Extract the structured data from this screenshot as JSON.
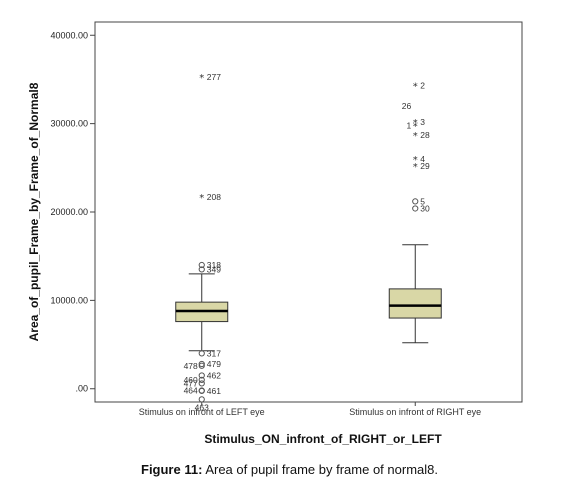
{
  "chart_data": {
    "type": "boxplot",
    "ylabel": "Area_of_pupil_Frame_by_Frame_of_Normal8",
    "xlabel": "Stimulus_ON_infront_of_RIGHT_or_LEFT",
    "ylim": [
      -1500,
      41500
    ],
    "yticks": [
      0,
      10000,
      20000,
      30000,
      40000
    ],
    "ytick_labels": [
      ".00",
      "10000.00",
      "20000.00",
      "30000.00",
      "40000.00"
    ],
    "grid": false,
    "legend": "none",
    "box_fill": "#d9d7a6",
    "categories": [
      {
        "name": "Stimulus on infront of LEFT eye",
        "whisker_low": 4300,
        "q1": 7600,
        "median": 8800,
        "q3": 9800,
        "whisker_high": 13000,
        "outliers": [
          {
            "label": "277",
            "value": 35300,
            "marker": "star",
            "label_side": "right"
          },
          {
            "label": "208",
            "value": 21700,
            "marker": "star",
            "label_side": "right"
          },
          {
            "label": "318",
            "value": 14000,
            "marker": "circle",
            "label_side": "right"
          },
          {
            "label": "349",
            "value": 13500,
            "marker": "circle",
            "label_side": "right"
          },
          {
            "label": "317",
            "value": 4000,
            "marker": "circle",
            "label_side": "right"
          },
          {
            "label": "478",
            "value": 2600,
            "marker": "circle",
            "label_side": "left"
          },
          {
            "label": "479",
            "value": 2800,
            "marker": "circle",
            "label_side": "right"
          },
          {
            "label": "462",
            "value": 1500,
            "marker": "circle",
            "label_side": "right"
          },
          {
            "label": "460",
            "value": 1000,
            "marker": "circle",
            "label_side": "left"
          },
          {
            "label": "477",
            "value": 600,
            "marker": "circle",
            "label_side": "left"
          },
          {
            "label": "464",
            "value": -200,
            "marker": "circle",
            "label_side": "left"
          },
          {
            "label": "461",
            "value": -250,
            "marker": "circle",
            "label_side": "right"
          },
          {
            "label": "463",
            "value": -1200,
            "marker": "circle",
            "label_side": "below"
          }
        ]
      },
      {
        "name": "Stimulus on infront of RIGHT eye",
        "whisker_low": 5200,
        "q1": 8000,
        "median": 9400,
        "q3": 11300,
        "whisker_high": 16300,
        "outliers": [
          {
            "label": "2",
            "value": 34300,
            "marker": "star",
            "label_side": "right"
          },
          {
            "label": "26",
            "value": 32000,
            "marker": "none",
            "label_side": "left"
          },
          {
            "label": "3",
            "value": 30200,
            "marker": "star",
            "label_side": "right"
          },
          {
            "label": "1",
            "value": 29800,
            "marker": "star",
            "label_side": "left"
          },
          {
            "label": "28",
            "value": 28700,
            "marker": "star",
            "label_side": "right"
          },
          {
            "label": "4",
            "value": 26000,
            "marker": "star",
            "label_side": "right"
          },
          {
            "label": "29",
            "value": 25200,
            "marker": "star",
            "label_side": "right"
          },
          {
            "label": "5",
            "value": 21200,
            "marker": "circle",
            "label_side": "right"
          },
          {
            "label": "30",
            "value": 20400,
            "marker": "circle",
            "label_side": "right"
          }
        ]
      }
    ]
  },
  "figure_caption": {
    "prefix": "Figure 11:",
    "text": " Area of pupil frame by frame of normal8."
  }
}
